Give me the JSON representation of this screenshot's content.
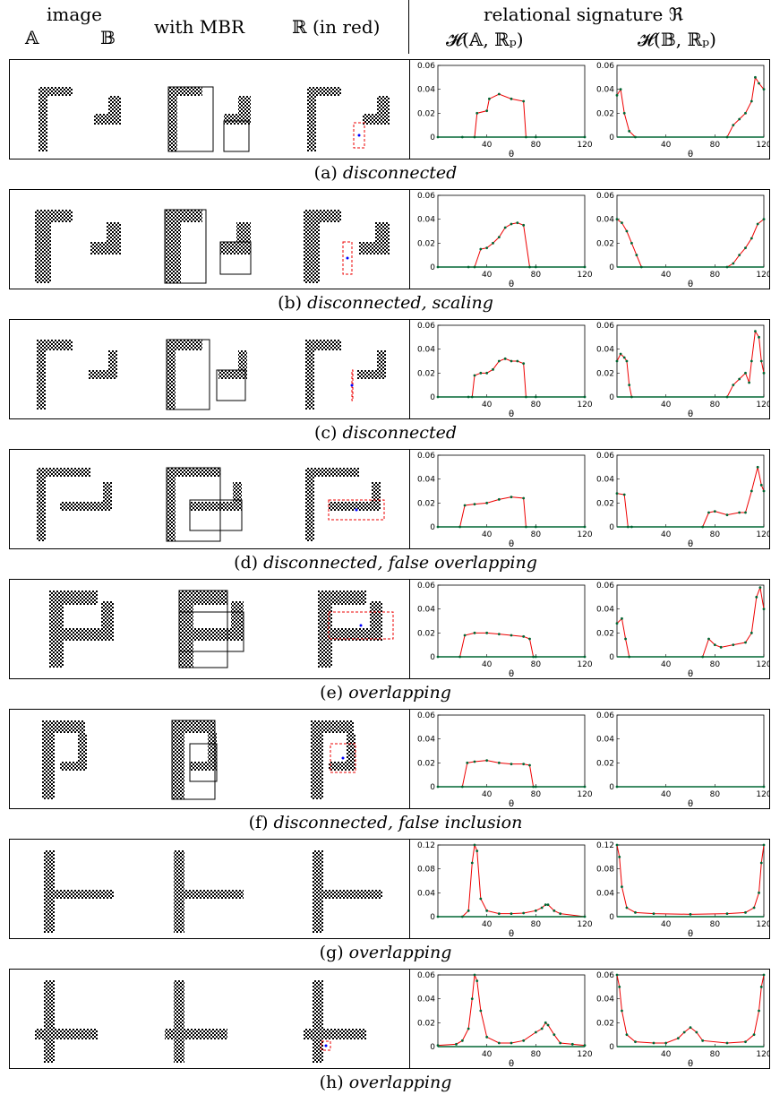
{
  "header": {
    "image": "image",
    "A": "𝔸",
    "B": "𝔹",
    "with_mbr": "with MBR",
    "r_in_red": "ℝ (in red)",
    "relational": "relational signature ℜ",
    "hA": "𝓗(𝔸, ℝₚ)",
    "hB": "𝓗(𝔹, ℝₚ)"
  },
  "rows": [
    {
      "label": "(a)",
      "caption": "disconnected"
    },
    {
      "label": "(b)",
      "caption": "disconnected, scaling"
    },
    {
      "label": "(c)",
      "caption": "disconnected"
    },
    {
      "label": "(d)",
      "caption": "disconnected, false overlapping"
    },
    {
      "label": "(e)",
      "caption": "overlapping"
    },
    {
      "label": "(f)",
      "caption": "disconnected, false inclusion"
    },
    {
      "label": "(g)",
      "caption": "overlapping"
    },
    {
      "label": "(h)",
      "caption": "overlapping"
    }
  ],
  "axis": {
    "xlabel": "θ",
    "xticks": [
      40,
      80,
      120
    ]
  },
  "chart_data": [
    {
      "type": "line",
      "panel": "a-A",
      "xlim": [
        0,
        120
      ],
      "ylim": [
        0,
        0.06
      ],
      "yticks": [
        0,
        0.02,
        0.04,
        0.06
      ],
      "x": [
        0,
        20,
        30,
        32,
        40,
        42,
        50,
        60,
        70,
        72,
        80,
        120
      ],
      "y": [
        0,
        0,
        0,
        0.02,
        0.022,
        0.032,
        0.036,
        0.032,
        0.03,
        0,
        0,
        0
      ]
    },
    {
      "type": "line",
      "panel": "a-B",
      "xlim": [
        0,
        120
      ],
      "ylim": [
        0,
        0.06
      ],
      "yticks": [
        0,
        0.02,
        0.04,
        0.06
      ],
      "x": [
        0,
        3,
        6,
        10,
        15,
        90,
        95,
        100,
        105,
        110,
        113,
        116,
        120
      ],
      "y": [
        0.035,
        0.04,
        0.02,
        0.005,
        0,
        0,
        0.01,
        0.015,
        0.02,
        0.03,
        0.05,
        0.045,
        0.04
      ]
    },
    {
      "type": "line",
      "panel": "b-A",
      "xlim": [
        0,
        120
      ],
      "ylim": [
        0,
        0.06
      ],
      "yticks": [
        0,
        0.02,
        0.04,
        0.06
      ],
      "x": [
        0,
        25,
        30,
        35,
        40,
        45,
        50,
        55,
        60,
        65,
        70,
        75,
        80,
        120
      ],
      "y": [
        0,
        0,
        0,
        0.015,
        0.016,
        0.02,
        0.025,
        0.033,
        0.036,
        0.037,
        0.035,
        0,
        0,
        0
      ]
    },
    {
      "type": "line",
      "panel": "b-B",
      "xlim": [
        0,
        120
      ],
      "ylim": [
        0,
        0.06
      ],
      "yticks": [
        0,
        0.02,
        0.04,
        0.06
      ],
      "x": [
        0,
        4,
        8,
        12,
        16,
        20,
        90,
        95,
        100,
        105,
        110,
        115,
        120
      ],
      "y": [
        0.04,
        0.037,
        0.03,
        0.02,
        0.01,
        0,
        0,
        0.003,
        0.01,
        0.016,
        0.024,
        0.036,
        0.04
      ]
    },
    {
      "type": "line",
      "panel": "c-A",
      "xlim": [
        0,
        120
      ],
      "ylim": [
        0,
        0.06
      ],
      "yticks": [
        0,
        0.02,
        0.04,
        0.06
      ],
      "x": [
        0,
        25,
        28,
        30,
        35,
        40,
        45,
        50,
        55,
        60,
        65,
        70,
        72,
        80,
        120
      ],
      "y": [
        0,
        0,
        0,
        0.018,
        0.02,
        0.02,
        0.023,
        0.03,
        0.032,
        0.03,
        0.03,
        0.028,
        0,
        0,
        0
      ]
    },
    {
      "type": "line",
      "panel": "c-B",
      "xlim": [
        0,
        120
      ],
      "ylim": [
        0,
        0.06
      ],
      "yticks": [
        0,
        0.02,
        0.04,
        0.06
      ],
      "x": [
        0,
        3,
        6,
        8,
        10,
        12,
        90,
        95,
        100,
        105,
        108,
        110,
        113,
        116,
        118,
        120
      ],
      "y": [
        0.03,
        0.036,
        0.033,
        0.03,
        0.01,
        0,
        0,
        0.01,
        0.015,
        0.02,
        0.012,
        0.03,
        0.055,
        0.05,
        0.03,
        0.02
      ]
    },
    {
      "type": "line",
      "panel": "d-A",
      "xlim": [
        0,
        120
      ],
      "ylim": [
        0,
        0.06
      ],
      "yticks": [
        0,
        0.02,
        0.04,
        0.06
      ],
      "x": [
        0,
        18,
        22,
        30,
        40,
        50,
        60,
        70,
        72,
        80,
        120
      ],
      "y": [
        0,
        0,
        0.018,
        0.019,
        0.02,
        0.023,
        0.025,
        0.024,
        0,
        0,
        0
      ]
    },
    {
      "type": "line",
      "panel": "d-B",
      "xlim": [
        0,
        120
      ],
      "ylim": [
        0,
        0.06
      ],
      "yticks": [
        0,
        0.02,
        0.04,
        0.06
      ],
      "x": [
        0,
        6,
        9,
        12,
        70,
        75,
        80,
        90,
        100,
        105,
        110,
        115,
        118,
        120
      ],
      "y": [
        0.028,
        0.027,
        0,
        0,
        0,
        0.012,
        0.013,
        0.01,
        0.012,
        0.012,
        0.03,
        0.05,
        0.035,
        0.03
      ]
    },
    {
      "type": "line",
      "panel": "e-A",
      "xlim": [
        0,
        120
      ],
      "ylim": [
        0,
        0.06
      ],
      "yticks": [
        0,
        0.02,
        0.04,
        0.06
      ],
      "x": [
        0,
        18,
        22,
        30,
        40,
        50,
        60,
        70,
        75,
        78,
        80,
        120
      ],
      "y": [
        0,
        0,
        0.018,
        0.02,
        0.02,
        0.019,
        0.018,
        0.017,
        0.015,
        0,
        0,
        0
      ]
    },
    {
      "type": "line",
      "panel": "e-B",
      "xlim": [
        0,
        120
      ],
      "ylim": [
        0,
        0.06
      ],
      "yticks": [
        0,
        0.02,
        0.04,
        0.06
      ],
      "x": [
        0,
        4,
        7,
        10,
        70,
        75,
        80,
        85,
        95,
        105,
        110,
        114,
        117,
        120
      ],
      "y": [
        0.028,
        0.032,
        0.015,
        0,
        0,
        0.015,
        0.01,
        0.008,
        0.01,
        0.012,
        0.02,
        0.05,
        0.058,
        0.04
      ]
    },
    {
      "type": "line",
      "panel": "f-A",
      "xlim": [
        0,
        120
      ],
      "ylim": [
        0,
        0.06
      ],
      "yticks": [
        0,
        0.02,
        0.04,
        0.06
      ],
      "x": [
        0,
        20,
        24,
        30,
        40,
        50,
        60,
        70,
        75,
        78,
        80,
        120
      ],
      "y": [
        0,
        0,
        0.02,
        0.021,
        0.022,
        0.02,
        0.019,
        0.019,
        0.018,
        0,
        0,
        0
      ]
    },
    {
      "type": "line",
      "panel": "f-B",
      "xlim": [
        0,
        120
      ],
      "ylim": [
        0,
        0.06
      ],
      "yticks": [
        0,
        0.02,
        0.04,
        0.06
      ],
      "x": [
        0,
        120
      ],
      "y": [
        0,
        0
      ]
    },
    {
      "type": "line",
      "panel": "g-A",
      "xlim": [
        0,
        120
      ],
      "ylim": [
        0,
        0.12
      ],
      "yticks": [
        0,
        0.04,
        0.08,
        0.12
      ],
      "x": [
        0,
        20,
        25,
        28,
        30,
        32,
        35,
        40,
        50,
        60,
        70,
        80,
        85,
        88,
        90,
        95,
        100,
        120
      ],
      "y": [
        0,
        0,
        0.01,
        0.09,
        0.12,
        0.11,
        0.03,
        0.01,
        0.005,
        0.005,
        0.006,
        0.01,
        0.015,
        0.02,
        0.02,
        0.01,
        0.005,
        0
      ]
    },
    {
      "type": "line",
      "panel": "g-B",
      "xlim": [
        0,
        120
      ],
      "ylim": [
        0,
        0.12
      ],
      "yticks": [
        0,
        0.04,
        0.08,
        0.12
      ],
      "x": [
        0,
        2,
        4,
        8,
        15,
        30,
        60,
        90,
        105,
        112,
        116,
        118,
        120
      ],
      "y": [
        0.12,
        0.1,
        0.05,
        0.015,
        0.007,
        0.005,
        0.004,
        0.005,
        0.007,
        0.015,
        0.04,
        0.09,
        0.12
      ]
    },
    {
      "type": "line",
      "panel": "h-A",
      "xlim": [
        0,
        120
      ],
      "ylim": [
        0,
        0.06
      ],
      "yticks": [
        0,
        0.02,
        0.04,
        0.06
      ],
      "x": [
        0,
        15,
        20,
        25,
        28,
        30,
        32,
        35,
        40,
        50,
        60,
        70,
        80,
        85,
        88,
        90,
        95,
        100,
        110,
        120
      ],
      "y": [
        0.001,
        0.002,
        0.005,
        0.015,
        0.04,
        0.06,
        0.055,
        0.03,
        0.008,
        0.003,
        0.003,
        0.005,
        0.012,
        0.015,
        0.02,
        0.018,
        0.01,
        0.003,
        0.002,
        0.001
      ]
    },
    {
      "type": "line",
      "panel": "h-B",
      "xlim": [
        0,
        120
      ],
      "ylim": [
        0,
        0.06
      ],
      "yticks": [
        0,
        0.02,
        0.04,
        0.06
      ],
      "x": [
        0,
        2,
        4,
        8,
        15,
        30,
        40,
        50,
        55,
        60,
        65,
        70,
        90,
        105,
        112,
        116,
        118,
        120
      ],
      "y": [
        0.06,
        0.05,
        0.03,
        0.01,
        0.004,
        0.003,
        0.003,
        0.007,
        0.012,
        0.016,
        0.012,
        0.005,
        0.003,
        0.004,
        0.01,
        0.03,
        0.05,
        0.06
      ]
    }
  ]
}
